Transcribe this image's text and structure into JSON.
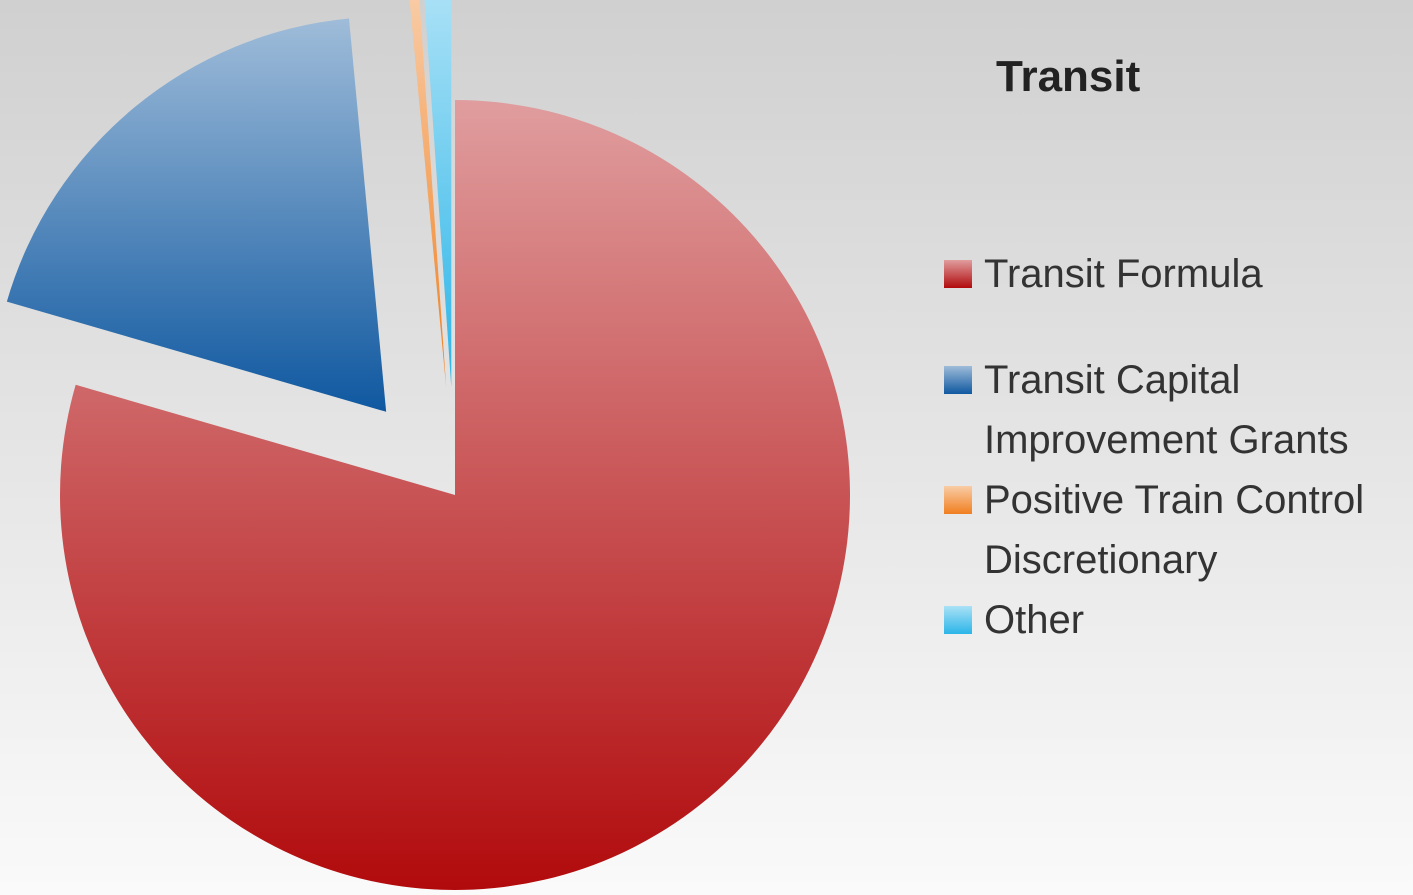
{
  "chart_data": {
    "type": "pie",
    "title": "Transit",
    "categories": [
      "Transit Formula",
      "Transit Capital Improvement Grants",
      "Positive Train Control Discretionary",
      "Other"
    ],
    "values": [
      79.5,
      19,
      0.4,
      1.1
    ],
    "colors": [
      "#b10a0c",
      "#0f58a0",
      "#f07f20",
      "#2bb5e8"
    ],
    "legend": "right"
  }
}
